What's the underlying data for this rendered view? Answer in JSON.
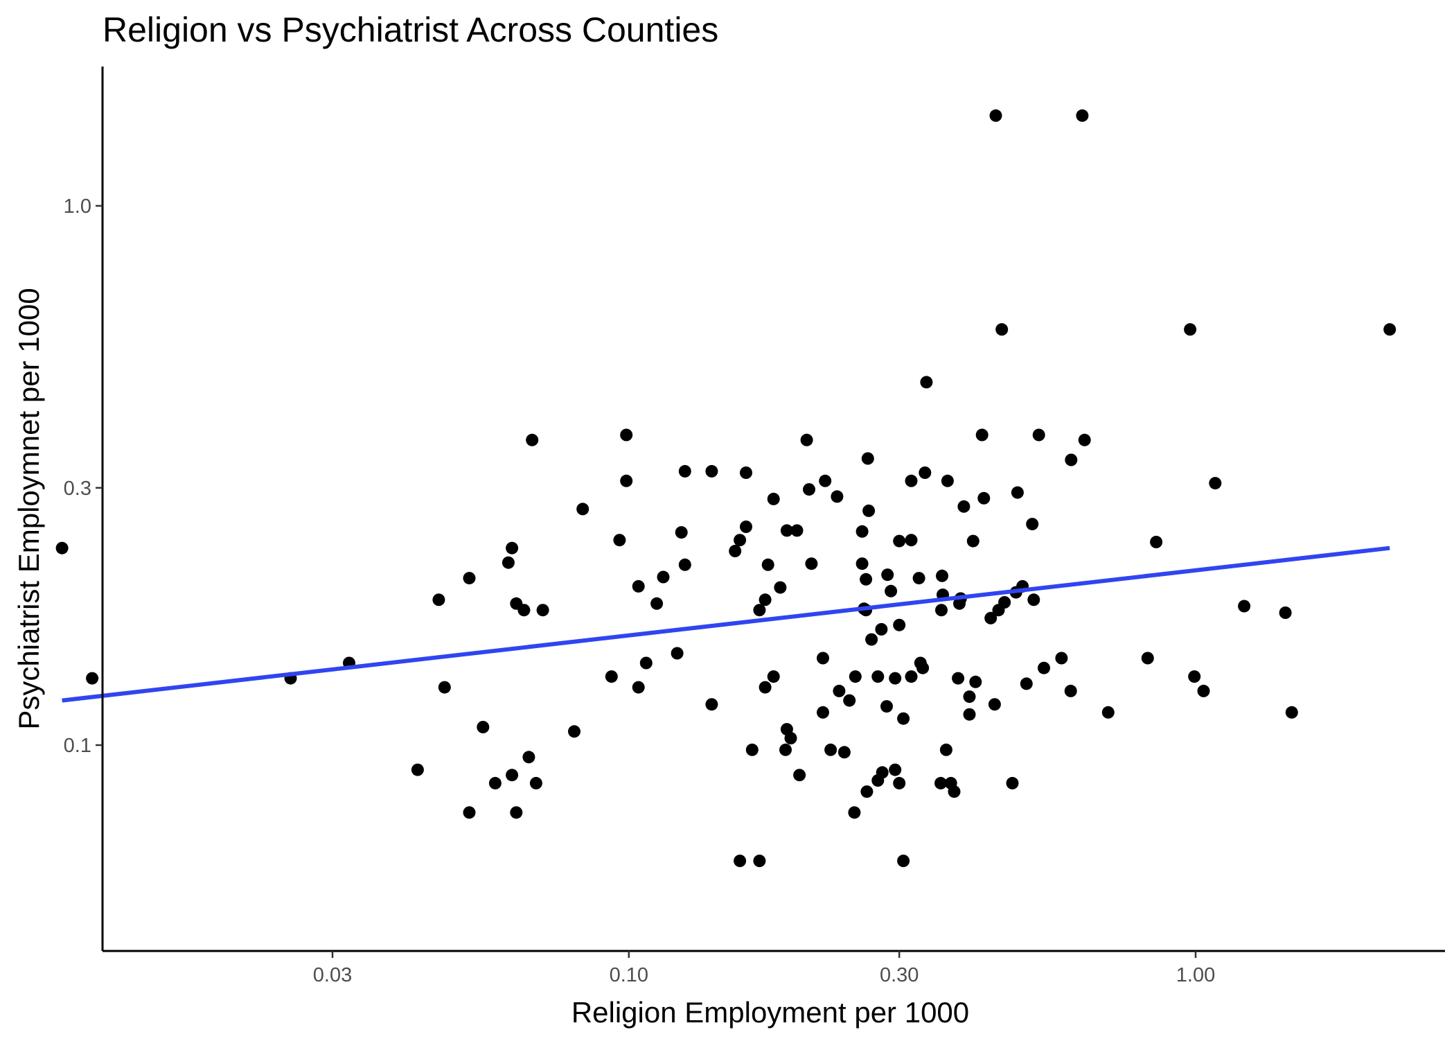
{
  "chart_data": {
    "type": "scatter",
    "title": "Religion vs Psychiatrist Across Counties",
    "xlabel": "Religion Employment per 1000",
    "ylabel": "Psychiatrist Employmnet per 1000",
    "x_scale": "log10",
    "y_scale": "log10",
    "xlim": [
      0.0088,
      3.2
    ],
    "ylim": [
      0.053,
      1.6
    ],
    "x_ticks": [
      0.03,
      0.1,
      0.3,
      1.0
    ],
    "x_tick_labels": [
      "0.03",
      "0.10",
      "0.30",
      "1.00"
    ],
    "y_ticks": [
      0.1,
      0.3,
      1.0
    ],
    "y_tick_labels": [
      "0.1",
      "0.3",
      "1.0"
    ],
    "grid": false,
    "legend": "none",
    "colors": {
      "points": "#000000",
      "fit_line": "#3045f0",
      "axis": "#000000"
    },
    "trend_line": {
      "x": [
        0.01,
        2.2
      ],
      "y": [
        0.121,
        0.232
      ]
    },
    "points": [
      {
        "x": 0.01,
        "y": 0.232
      },
      {
        "x": 0.0113,
        "y": 0.133
      },
      {
        "x": 0.0253,
        "y": 0.133
      },
      {
        "x": 0.0321,
        "y": 0.142
      },
      {
        "x": 0.0424,
        "y": 0.09
      },
      {
        "x": 0.0462,
        "y": 0.186
      },
      {
        "x": 0.0473,
        "y": 0.128
      },
      {
        "x": 0.0523,
        "y": 0.204
      },
      {
        "x": 0.0523,
        "y": 0.075
      },
      {
        "x": 0.0553,
        "y": 0.108
      },
      {
        "x": 0.0581,
        "y": 0.085
      },
      {
        "x": 0.0613,
        "y": 0.218
      },
      {
        "x": 0.0622,
        "y": 0.232
      },
      {
        "x": 0.0622,
        "y": 0.088
      },
      {
        "x": 0.0633,
        "y": 0.183
      },
      {
        "x": 0.0633,
        "y": 0.075
      },
      {
        "x": 0.0653,
        "y": 0.178
      },
      {
        "x": 0.0666,
        "y": 0.095
      },
      {
        "x": 0.0675,
        "y": 0.368
      },
      {
        "x": 0.0686,
        "y": 0.085
      },
      {
        "x": 0.0705,
        "y": 0.178
      },
      {
        "x": 0.0801,
        "y": 0.106
      },
      {
        "x": 0.0829,
        "y": 0.274
      },
      {
        "x": 0.0932,
        "y": 0.134
      },
      {
        "x": 0.0963,
        "y": 0.24
      },
      {
        "x": 0.099,
        "y": 0.376
      },
      {
        "x": 0.099,
        "y": 0.309
      },
      {
        "x": 0.104,
        "y": 0.128
      },
      {
        "x": 0.104,
        "y": 0.197
      },
      {
        "x": 0.1073,
        "y": 0.142
      },
      {
        "x": 0.112,
        "y": 0.183
      },
      {
        "x": 0.115,
        "y": 0.205
      },
      {
        "x": 0.1217,
        "y": 0.148
      },
      {
        "x": 0.1238,
        "y": 0.248
      },
      {
        "x": 0.1256,
        "y": 0.322
      },
      {
        "x": 0.1256,
        "y": 0.216
      },
      {
        "x": 0.14,
        "y": 0.119
      },
      {
        "x": 0.14,
        "y": 0.322
      },
      {
        "x": 0.154,
        "y": 0.229
      },
      {
        "x": 0.157,
        "y": 0.24
      },
      {
        "x": 0.157,
        "y": 0.061
      },
      {
        "x": 0.161,
        "y": 0.254
      },
      {
        "x": 0.161,
        "y": 0.32
      },
      {
        "x": 0.165,
        "y": 0.098
      },
      {
        "x": 0.17,
        "y": 0.178
      },
      {
        "x": 0.17,
        "y": 0.061
      },
      {
        "x": 0.174,
        "y": 0.186
      },
      {
        "x": 0.174,
        "y": 0.128
      },
      {
        "x": 0.176,
        "y": 0.216
      },
      {
        "x": 0.18,
        "y": 0.134
      },
      {
        "x": 0.18,
        "y": 0.286
      },
      {
        "x": 0.185,
        "y": 0.196
      },
      {
        "x": 0.189,
        "y": 0.098
      },
      {
        "x": 0.19,
        "y": 0.25
      },
      {
        "x": 0.19,
        "y": 0.107
      },
      {
        "x": 0.193,
        "y": 0.103
      },
      {
        "x": 0.198,
        "y": 0.25
      },
      {
        "x": 0.2,
        "y": 0.088
      },
      {
        "x": 0.206,
        "y": 0.368
      },
      {
        "x": 0.208,
        "y": 0.298
      },
      {
        "x": 0.21,
        "y": 0.217
      },
      {
        "x": 0.22,
        "y": 0.145
      },
      {
        "x": 0.22,
        "y": 0.115
      },
      {
        "x": 0.222,
        "y": 0.309
      },
      {
        "x": 0.227,
        "y": 0.098
      },
      {
        "x": 0.233,
        "y": 0.289
      },
      {
        "x": 0.235,
        "y": 0.126
      },
      {
        "x": 0.24,
        "y": 0.097
      },
      {
        "x": 0.245,
        "y": 0.121
      },
      {
        "x": 0.25,
        "y": 0.075
      },
      {
        "x": 0.251,
        "y": 0.134
      },
      {
        "x": 0.258,
        "y": 0.249
      },
      {
        "x": 0.258,
        "y": 0.217
      },
      {
        "x": 0.26,
        "y": 0.179
      },
      {
        "x": 0.262,
        "y": 0.178
      },
      {
        "x": 0.262,
        "y": 0.203
      },
      {
        "x": 0.263,
        "y": 0.082
      },
      {
        "x": 0.264,
        "y": 0.34
      },
      {
        "x": 0.265,
        "y": 0.272
      },
      {
        "x": 0.268,
        "y": 0.157
      },
      {
        "x": 0.275,
        "y": 0.134
      },
      {
        "x": 0.275,
        "y": 0.086
      },
      {
        "x": 0.279,
        "y": 0.164
      },
      {
        "x": 0.28,
        "y": 0.089
      },
      {
        "x": 0.285,
        "y": 0.118
      },
      {
        "x": 0.286,
        "y": 0.207
      },
      {
        "x": 0.29,
        "y": 0.193
      },
      {
        "x": 0.295,
        "y": 0.09
      },
      {
        "x": 0.295,
        "y": 0.133
      },
      {
        "x": 0.3,
        "y": 0.239
      },
      {
        "x": 0.3,
        "y": 0.167
      },
      {
        "x": 0.3,
        "y": 0.085
      },
      {
        "x": 0.305,
        "y": 0.112
      },
      {
        "x": 0.305,
        "y": 0.061
      },
      {
        "x": 0.315,
        "y": 0.24
      },
      {
        "x": 0.315,
        "y": 0.134
      },
      {
        "x": 0.315,
        "y": 0.309
      },
      {
        "x": 0.325,
        "y": 0.204
      },
      {
        "x": 0.327,
        "y": 0.142
      },
      {
        "x": 0.33,
        "y": 0.139
      },
      {
        "x": 0.333,
        "y": 0.32
      },
      {
        "x": 0.335,
        "y": 0.471
      },
      {
        "x": 0.355,
        "y": 0.085
      },
      {
        "x": 0.356,
        "y": 0.178
      },
      {
        "x": 0.357,
        "y": 0.206
      },
      {
        "x": 0.358,
        "y": 0.19
      },
      {
        "x": 0.363,
        "y": 0.098
      },
      {
        "x": 0.365,
        "y": 0.309
      },
      {
        "x": 0.37,
        "y": 0.085
      },
      {
        "x": 0.375,
        "y": 0.082
      },
      {
        "x": 0.381,
        "y": 0.133
      },
      {
        "x": 0.383,
        "y": 0.183
      },
      {
        "x": 0.385,
        "y": 0.187
      },
      {
        "x": 0.39,
        "y": 0.277
      },
      {
        "x": 0.399,
        "y": 0.114
      },
      {
        "x": 0.399,
        "y": 0.123
      },
      {
        "x": 0.405,
        "y": 0.239
      },
      {
        "x": 0.409,
        "y": 0.131
      },
      {
        "x": 0.42,
        "y": 0.376
      },
      {
        "x": 0.423,
        "y": 0.287
      },
      {
        "x": 0.435,
        "y": 0.172
      },
      {
        "x": 0.442,
        "y": 0.119
      },
      {
        "x": 0.444,
        "y": 1.47
      },
      {
        "x": 0.449,
        "y": 0.178
      },
      {
        "x": 0.455,
        "y": 0.59
      },
      {
        "x": 0.46,
        "y": 0.184
      },
      {
        "x": 0.475,
        "y": 0.085
      },
      {
        "x": 0.482,
        "y": 0.192
      },
      {
        "x": 0.485,
        "y": 0.294
      },
      {
        "x": 0.495,
        "y": 0.197
      },
      {
        "x": 0.503,
        "y": 0.13
      },
      {
        "x": 0.515,
        "y": 0.257
      },
      {
        "x": 0.518,
        "y": 0.186
      },
      {
        "x": 0.529,
        "y": 0.376
      },
      {
        "x": 0.54,
        "y": 0.139
      },
      {
        "x": 0.58,
        "y": 0.145
      },
      {
        "x": 0.602,
        "y": 0.126
      },
      {
        "x": 0.603,
        "y": 0.338
      },
      {
        "x": 0.631,
        "y": 1.47
      },
      {
        "x": 0.637,
        "y": 0.368
      },
      {
        "x": 0.701,
        "y": 0.115
      },
      {
        "x": 0.823,
        "y": 0.145
      },
      {
        "x": 0.852,
        "y": 0.238
      },
      {
        "x": 0.978,
        "y": 0.59
      },
      {
        "x": 0.995,
        "y": 0.134
      },
      {
        "x": 1.083,
        "y": 0.306
      },
      {
        "x": 1.033,
        "y": 0.126
      },
      {
        "x": 1.218,
        "y": 0.181
      },
      {
        "x": 1.44,
        "y": 0.176
      },
      {
        "x": 1.478,
        "y": 0.115
      },
      {
        "x": 2.2,
        "y": 0.59
      }
    ]
  }
}
